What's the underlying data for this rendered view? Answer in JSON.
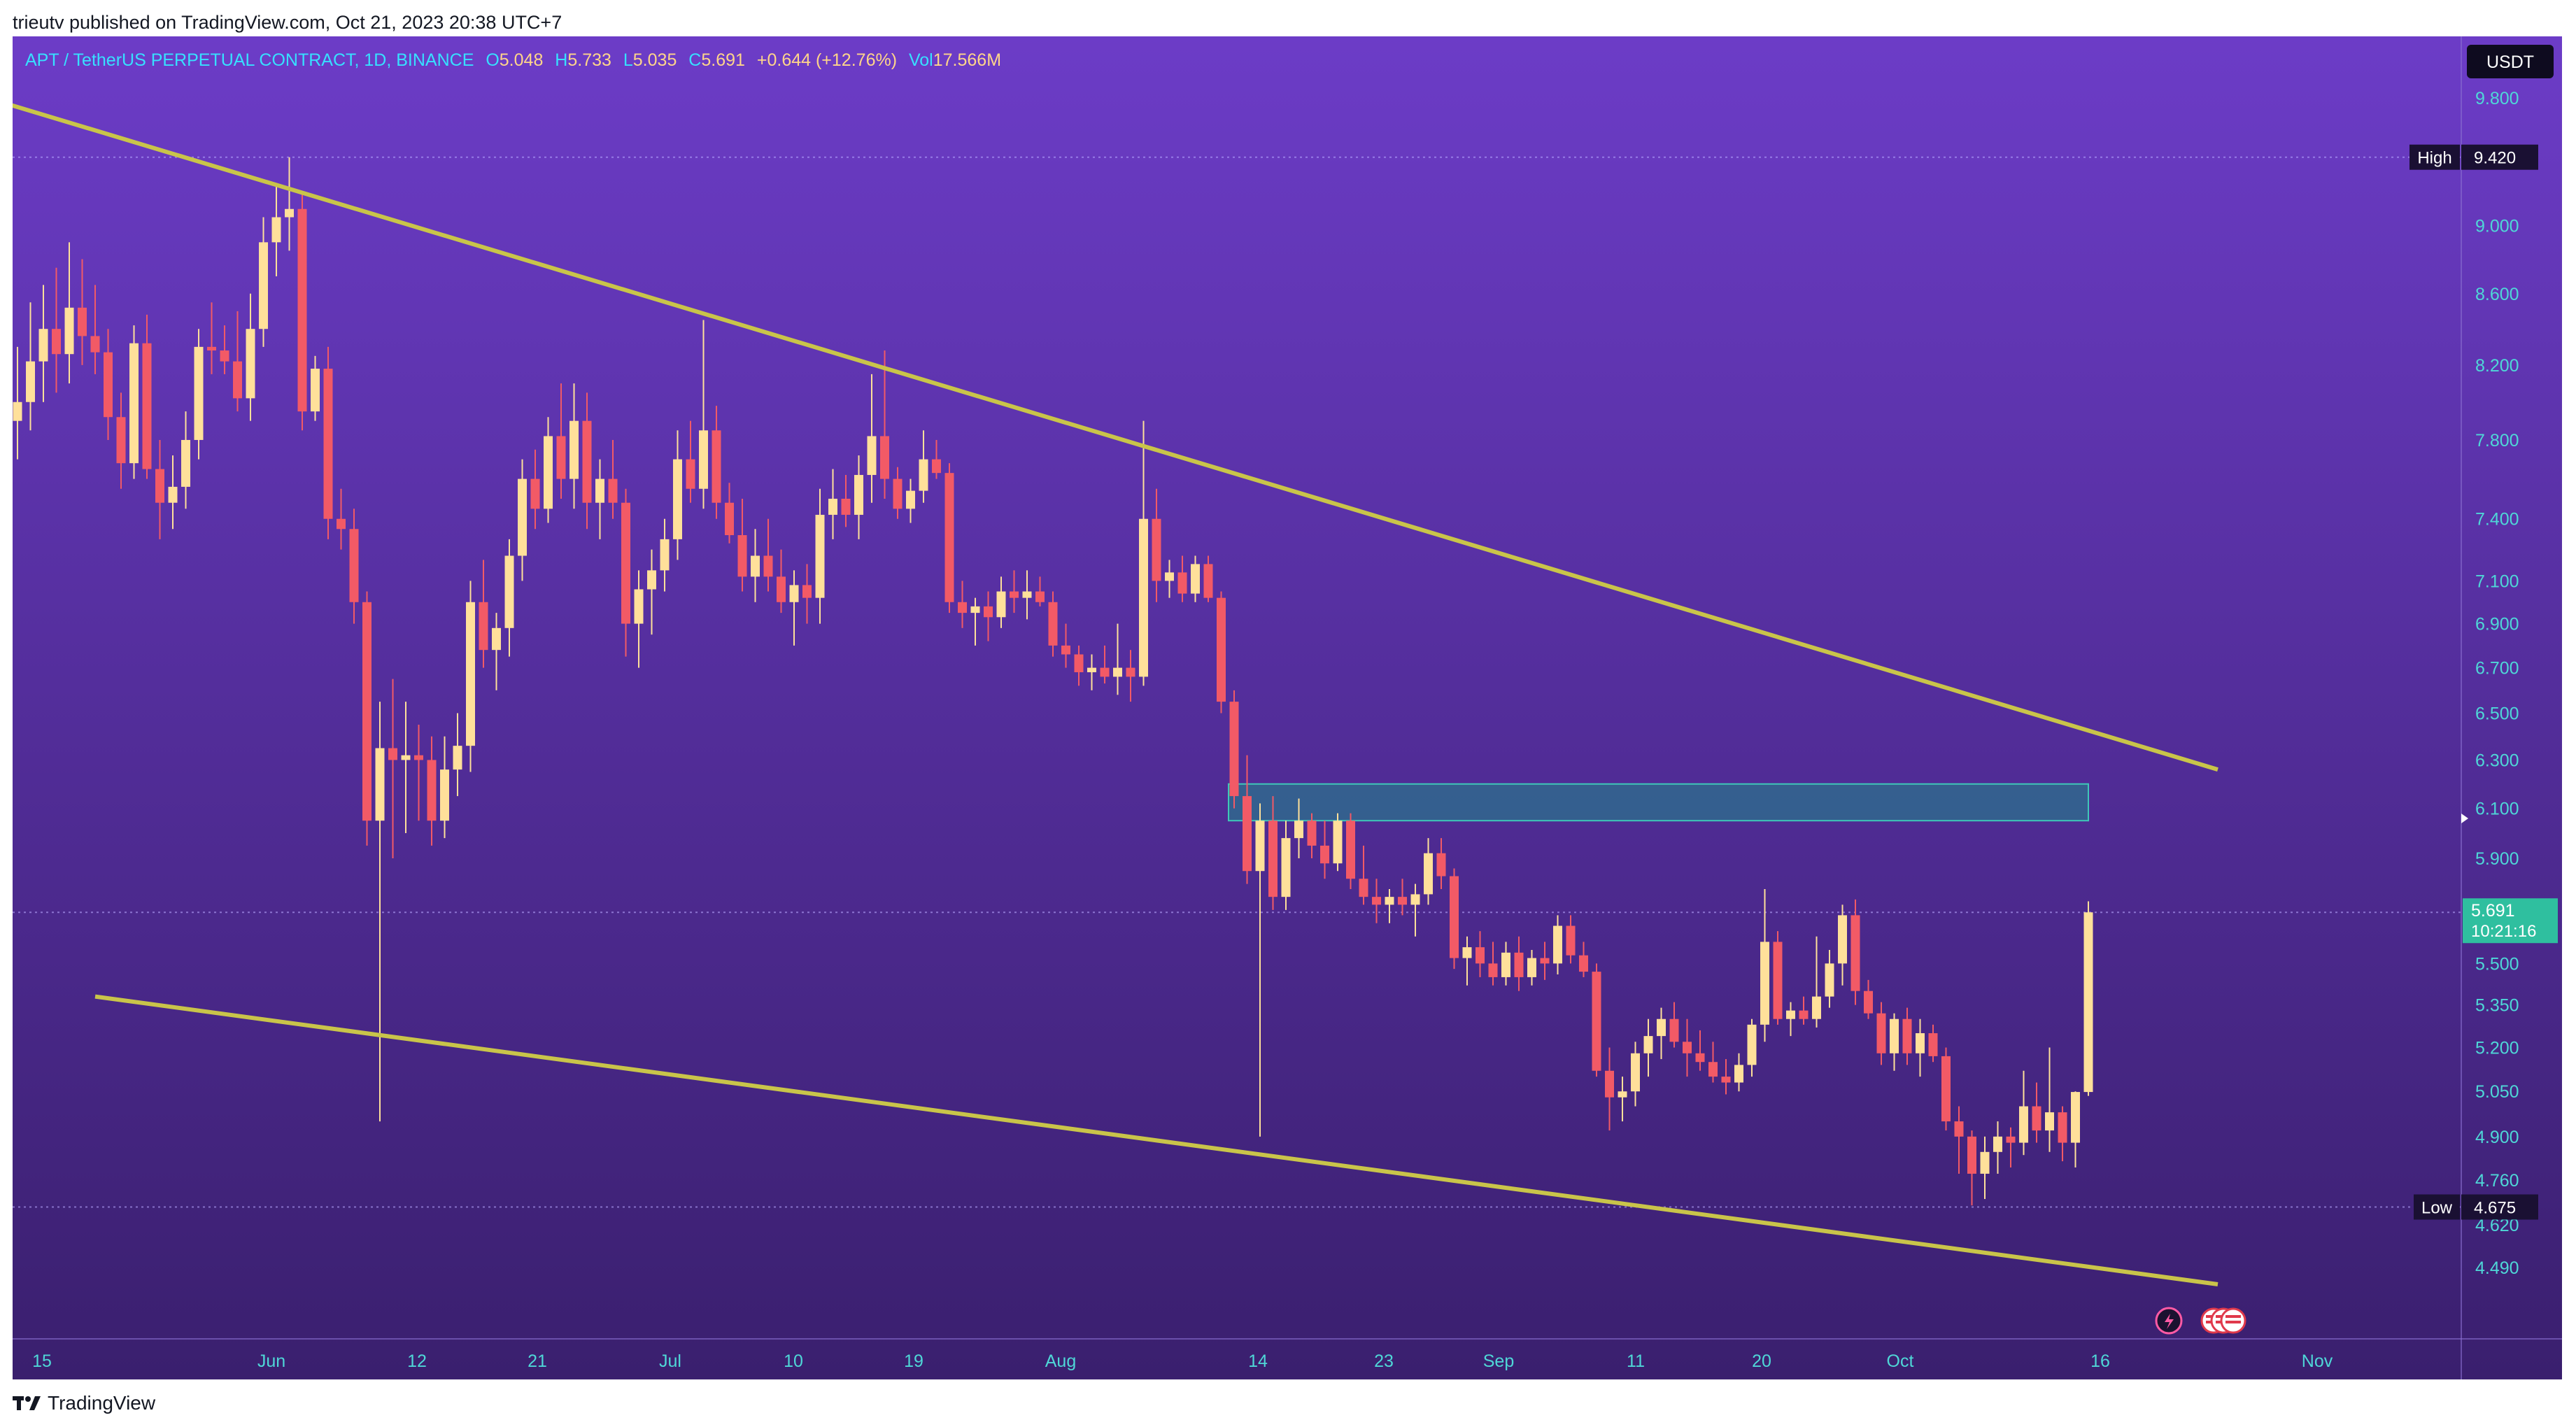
{
  "header": {
    "published_text": "trieutv published on TradingView.com, Oct 21, 2023 20:38 UTC+7"
  },
  "legend": {
    "symbol": "APT / TetherUS PERPETUAL CONTRACT, 1D, BINANCE",
    "open_label": "O",
    "open": "5.048",
    "high_label": "H",
    "high": "5.733",
    "low_label": "L",
    "low": "5.035",
    "close_label": "C",
    "close": "5.691",
    "change": "+0.644 (+12.76%)",
    "vol_label": "Vol",
    "volume": "17.566M"
  },
  "price_axis": {
    "currency": "USDT",
    "ticks": [
      "9.800",
      "9.000",
      "8.600",
      "8.200",
      "7.800",
      "7.400",
      "7.100",
      "6.900",
      "6.700",
      "6.500",
      "6.300",
      "6.100",
      "5.900",
      "5.500",
      "5.350",
      "5.200",
      "5.050",
      "4.900",
      "4.760",
      "4.620",
      "4.490"
    ],
    "high_label": "High",
    "high_value": "9.420",
    "low_label": "Low",
    "low_value": "4.675",
    "last_price": "5.691",
    "countdown": "10:21:16"
  },
  "time_axis": {
    "labels": [
      "15",
      "Jun",
      "12",
      "21",
      "Jul",
      "10",
      "19",
      "Aug",
      "14",
      "23",
      "Sep",
      "11",
      "20",
      "Oct",
      "16",
      "Nov"
    ]
  },
  "colors": {
    "bg_top": "#6c3cc7",
    "bg_bottom": "#3a1f6e",
    "up_candle": "#ffe09a",
    "down_candle": "#f25a66",
    "trendline": "#c9c44a",
    "zone_fill": "#1f8a8a",
    "last_price_badge": "#2fbf9f",
    "axis_text": "#4fd7d7"
  },
  "chart_data": {
    "type": "candlestick",
    "symbol": "APT/USDT",
    "timeframe": "1D",
    "x_range": [
      "2023-05-12",
      "2023-11-01"
    ],
    "ylim": [
      4.45,
      9.95
    ],
    "scale": "log",
    "candles": [
      {
        "o": 7.9,
        "h": 8.3,
        "l": 7.7,
        "c": 8.0
      },
      {
        "o": 8.0,
        "h": 8.55,
        "l": 7.85,
        "c": 8.22
      },
      {
        "o": 8.22,
        "h": 8.65,
        "l": 8.0,
        "c": 8.4
      },
      {
        "o": 8.4,
        "h": 8.75,
        "l": 8.05,
        "c": 8.26
      },
      {
        "o": 8.26,
        "h": 8.9,
        "l": 8.1,
        "c": 8.52
      },
      {
        "o": 8.52,
        "h": 8.8,
        "l": 8.2,
        "c": 8.36
      },
      {
        "o": 8.36,
        "h": 8.65,
        "l": 8.15,
        "c": 8.27
      },
      {
        "o": 8.27,
        "h": 8.4,
        "l": 7.8,
        "c": 7.92
      },
      {
        "o": 7.92,
        "h": 8.05,
        "l": 7.55,
        "c": 7.68
      },
      {
        "o": 7.68,
        "h": 8.42,
        "l": 7.6,
        "c": 8.32
      },
      {
        "o": 8.32,
        "h": 8.48,
        "l": 7.6,
        "c": 7.65
      },
      {
        "o": 7.65,
        "h": 7.8,
        "l": 7.3,
        "c": 7.48
      },
      {
        "o": 7.48,
        "h": 7.72,
        "l": 7.35,
        "c": 7.56
      },
      {
        "o": 7.56,
        "h": 7.95,
        "l": 7.45,
        "c": 7.8
      },
      {
        "o": 7.8,
        "h": 8.4,
        "l": 7.7,
        "c": 8.3
      },
      {
        "o": 8.3,
        "h": 8.55,
        "l": 8.15,
        "c": 8.28
      },
      {
        "o": 8.28,
        "h": 8.42,
        "l": 8.15,
        "c": 8.22
      },
      {
        "o": 8.22,
        "h": 8.5,
        "l": 7.95,
        "c": 8.02
      },
      {
        "o": 8.02,
        "h": 8.6,
        "l": 7.9,
        "c": 8.4
      },
      {
        "o": 8.4,
        "h": 9.05,
        "l": 8.3,
        "c": 8.9
      },
      {
        "o": 8.9,
        "h": 9.25,
        "l": 8.7,
        "c": 9.05
      },
      {
        "o": 9.05,
        "h": 9.42,
        "l": 8.85,
        "c": 9.1
      },
      {
        "o": 9.1,
        "h": 9.2,
        "l": 7.85,
        "c": 7.95
      },
      {
        "o": 7.95,
        "h": 8.25,
        "l": 7.9,
        "c": 8.18
      },
      {
        "o": 8.18,
        "h": 8.3,
        "l": 7.3,
        "c": 7.4
      },
      {
        "o": 7.4,
        "h": 7.55,
        "l": 7.25,
        "c": 7.35
      },
      {
        "o": 7.35,
        "h": 7.45,
        "l": 6.9,
        "c": 7.0
      },
      {
        "o": 7.0,
        "h": 7.05,
        "l": 5.95,
        "c": 6.05
      },
      {
        "o": 6.05,
        "h": 6.55,
        "l": 4.95,
        "c": 6.35
      },
      {
        "o": 6.35,
        "h": 6.65,
        "l": 5.9,
        "c": 6.3
      },
      {
        "o": 6.3,
        "h": 6.55,
        "l": 6.0,
        "c": 6.32
      },
      {
        "o": 6.32,
        "h": 6.45,
        "l": 6.05,
        "c": 6.3
      },
      {
        "o": 6.3,
        "h": 6.4,
        "l": 5.95,
        "c": 6.05
      },
      {
        "o": 6.05,
        "h": 6.4,
        "l": 5.98,
        "c": 6.26
      },
      {
        "o": 6.26,
        "h": 6.5,
        "l": 6.15,
        "c": 6.36
      },
      {
        "o": 6.36,
        "h": 7.1,
        "l": 6.25,
        "c": 7.0
      },
      {
        "o": 7.0,
        "h": 7.2,
        "l": 6.7,
        "c": 6.78
      },
      {
        "o": 6.78,
        "h": 6.95,
        "l": 6.6,
        "c": 6.88
      },
      {
        "o": 6.88,
        "h": 7.3,
        "l": 6.75,
        "c": 7.22
      },
      {
        "o": 7.22,
        "h": 7.7,
        "l": 7.1,
        "c": 7.6
      },
      {
        "o": 7.6,
        "h": 7.75,
        "l": 7.35,
        "c": 7.45
      },
      {
        "o": 7.45,
        "h": 7.92,
        "l": 7.38,
        "c": 7.82
      },
      {
        "o": 7.82,
        "h": 8.1,
        "l": 7.5,
        "c": 7.6
      },
      {
        "o": 7.6,
        "h": 8.1,
        "l": 7.45,
        "c": 7.9
      },
      {
        "o": 7.9,
        "h": 8.05,
        "l": 7.35,
        "c": 7.48
      },
      {
        "o": 7.48,
        "h": 7.7,
        "l": 7.3,
        "c": 7.6
      },
      {
        "o": 7.6,
        "h": 7.8,
        "l": 7.4,
        "c": 7.48
      },
      {
        "o": 7.48,
        "h": 7.55,
        "l": 6.75,
        "c": 6.9
      },
      {
        "o": 6.9,
        "h": 7.15,
        "l": 6.7,
        "c": 7.06
      },
      {
        "o": 7.06,
        "h": 7.25,
        "l": 6.85,
        "c": 7.15
      },
      {
        "o": 7.15,
        "h": 7.4,
        "l": 7.05,
        "c": 7.3
      },
      {
        "o": 7.3,
        "h": 7.85,
        "l": 7.2,
        "c": 7.7
      },
      {
        "o": 7.7,
        "h": 7.9,
        "l": 7.48,
        "c": 7.55
      },
      {
        "o": 7.55,
        "h": 8.45,
        "l": 7.45,
        "c": 7.85
      },
      {
        "o": 7.85,
        "h": 7.98,
        "l": 7.4,
        "c": 7.48
      },
      {
        "o": 7.48,
        "h": 7.58,
        "l": 7.28,
        "c": 7.32
      },
      {
        "o": 7.32,
        "h": 7.5,
        "l": 7.05,
        "c": 7.12
      },
      {
        "o": 7.12,
        "h": 7.35,
        "l": 7.0,
        "c": 7.22
      },
      {
        "o": 7.22,
        "h": 7.4,
        "l": 7.05,
        "c": 7.12
      },
      {
        "o": 7.12,
        "h": 7.25,
        "l": 6.95,
        "c": 7.0
      },
      {
        "o": 7.0,
        "h": 7.15,
        "l": 6.8,
        "c": 7.08
      },
      {
        "o": 7.08,
        "h": 7.18,
        "l": 6.9,
        "c": 7.02
      },
      {
        "o": 7.02,
        "h": 7.55,
        "l": 6.9,
        "c": 7.42
      },
      {
        "o": 7.42,
        "h": 7.65,
        "l": 7.3,
        "c": 7.5
      },
      {
        "o": 7.5,
        "h": 7.62,
        "l": 7.36,
        "c": 7.42
      },
      {
        "o": 7.42,
        "h": 7.72,
        "l": 7.3,
        "c": 7.62
      },
      {
        "o": 7.62,
        "h": 8.15,
        "l": 7.48,
        "c": 7.82
      },
      {
        "o": 7.82,
        "h": 8.28,
        "l": 7.5,
        "c": 7.6
      },
      {
        "o": 7.6,
        "h": 7.66,
        "l": 7.4,
        "c": 7.45
      },
      {
        "o": 7.45,
        "h": 7.6,
        "l": 7.38,
        "c": 7.54
      },
      {
        "o": 7.54,
        "h": 7.85,
        "l": 7.48,
        "c": 7.7
      },
      {
        "o": 7.7,
        "h": 7.8,
        "l": 7.6,
        "c": 7.63
      },
      {
        "o": 7.63,
        "h": 7.68,
        "l": 6.95,
        "c": 7.0
      },
      {
        "o": 7.0,
        "h": 7.1,
        "l": 6.88,
        "c": 6.95
      },
      {
        "o": 6.95,
        "h": 7.02,
        "l": 6.8,
        "c": 6.98
      },
      {
        "o": 6.98,
        "h": 7.05,
        "l": 6.82,
        "c": 6.93
      },
      {
        "o": 6.93,
        "h": 7.12,
        "l": 6.88,
        "c": 7.05
      },
      {
        "o": 7.05,
        "h": 7.15,
        "l": 6.95,
        "c": 7.02
      },
      {
        "o": 7.02,
        "h": 7.15,
        "l": 6.92,
        "c": 7.05
      },
      {
        "o": 7.05,
        "h": 7.12,
        "l": 6.98,
        "c": 7.0
      },
      {
        "o": 7.0,
        "h": 7.05,
        "l": 6.75,
        "c": 6.8
      },
      {
        "o": 6.8,
        "h": 6.9,
        "l": 6.7,
        "c": 6.76
      },
      {
        "o": 6.76,
        "h": 6.8,
        "l": 6.62,
        "c": 6.68
      },
      {
        "o": 6.68,
        "h": 6.76,
        "l": 6.6,
        "c": 6.7
      },
      {
        "o": 6.7,
        "h": 6.8,
        "l": 6.63,
        "c": 6.66
      },
      {
        "o": 6.66,
        "h": 6.9,
        "l": 6.58,
        "c": 6.7
      },
      {
        "o": 6.7,
        "h": 6.78,
        "l": 6.55,
        "c": 6.66
      },
      {
        "o": 6.66,
        "h": 7.9,
        "l": 6.62,
        "c": 7.4
      },
      {
        "o": 7.4,
        "h": 7.55,
        "l": 7.0,
        "c": 7.1
      },
      {
        "o": 7.1,
        "h": 7.2,
        "l": 7.02,
        "c": 7.14
      },
      {
        "o": 7.14,
        "h": 7.22,
        "l": 7.0,
        "c": 7.04
      },
      {
        "o": 7.04,
        "h": 7.22,
        "l": 7.0,
        "c": 7.18
      },
      {
        "o": 7.18,
        "h": 7.22,
        "l": 7.0,
        "c": 7.02
      },
      {
        "o": 7.02,
        "h": 7.05,
        "l": 6.5,
        "c": 6.55
      },
      {
        "o": 6.55,
        "h": 6.6,
        "l": 6.1,
        "c": 6.15
      },
      {
        "o": 6.15,
        "h": 6.32,
        "l": 5.8,
        "c": 5.85
      },
      {
        "o": 5.85,
        "h": 6.12,
        "l": 4.9,
        "c": 6.05
      },
      {
        "o": 6.05,
        "h": 6.15,
        "l": 5.7,
        "c": 5.75
      },
      {
        "o": 5.75,
        "h": 6.05,
        "l": 5.7,
        "c": 5.98
      },
      {
        "o": 5.98,
        "h": 6.14,
        "l": 5.9,
        "c": 6.05
      },
      {
        "o": 6.05,
        "h": 6.08,
        "l": 5.9,
        "c": 5.95
      },
      {
        "o": 5.95,
        "h": 6.05,
        "l": 5.82,
        "c": 5.88
      },
      {
        "o": 5.88,
        "h": 6.08,
        "l": 5.85,
        "c": 6.05
      },
      {
        "o": 6.05,
        "h": 6.08,
        "l": 5.78,
        "c": 5.82
      },
      {
        "o": 5.82,
        "h": 5.95,
        "l": 5.72,
        "c": 5.75
      },
      {
        "o": 5.75,
        "h": 5.82,
        "l": 5.65,
        "c": 5.72
      },
      {
        "o": 5.72,
        "h": 5.78,
        "l": 5.65,
        "c": 5.75
      },
      {
        "o": 5.75,
        "h": 5.82,
        "l": 5.68,
        "c": 5.72
      },
      {
        "o": 5.72,
        "h": 5.8,
        "l": 5.6,
        "c": 5.76
      },
      {
        "o": 5.76,
        "h": 5.98,
        "l": 5.72,
        "c": 5.92
      },
      {
        "o": 5.92,
        "h": 5.98,
        "l": 5.78,
        "c": 5.83
      },
      {
        "o": 5.83,
        "h": 5.86,
        "l": 5.48,
        "c": 5.52
      },
      {
        "o": 5.52,
        "h": 5.6,
        "l": 5.42,
        "c": 5.56
      },
      {
        "o": 5.56,
        "h": 5.62,
        "l": 5.45,
        "c": 5.5
      },
      {
        "o": 5.5,
        "h": 5.58,
        "l": 5.42,
        "c": 5.45
      },
      {
        "o": 5.45,
        "h": 5.58,
        "l": 5.42,
        "c": 5.54
      },
      {
        "o": 5.54,
        "h": 5.6,
        "l": 5.4,
        "c": 5.45
      },
      {
        "o": 5.45,
        "h": 5.55,
        "l": 5.42,
        "c": 5.52
      },
      {
        "o": 5.52,
        "h": 5.58,
        "l": 5.44,
        "c": 5.5
      },
      {
        "o": 5.5,
        "h": 5.68,
        "l": 5.46,
        "c": 5.64
      },
      {
        "o": 5.64,
        "h": 5.68,
        "l": 5.5,
        "c": 5.53
      },
      {
        "o": 5.53,
        "h": 5.58,
        "l": 5.45,
        "c": 5.47
      },
      {
        "o": 5.47,
        "h": 5.5,
        "l": 5.1,
        "c": 5.12
      },
      {
        "o": 5.12,
        "h": 5.2,
        "l": 4.92,
        "c": 5.03
      },
      {
        "o": 5.03,
        "h": 5.1,
        "l": 4.95,
        "c": 5.05
      },
      {
        "o": 5.05,
        "h": 5.22,
        "l": 5.0,
        "c": 5.18
      },
      {
        "o": 5.18,
        "h": 5.3,
        "l": 5.1,
        "c": 5.24
      },
      {
        "o": 5.24,
        "h": 5.34,
        "l": 5.16,
        "c": 5.3
      },
      {
        "o": 5.3,
        "h": 5.36,
        "l": 5.2,
        "c": 5.22
      },
      {
        "o": 5.22,
        "h": 5.3,
        "l": 5.1,
        "c": 5.18
      },
      {
        "o": 5.18,
        "h": 5.26,
        "l": 5.12,
        "c": 5.15
      },
      {
        "o": 5.15,
        "h": 5.22,
        "l": 5.08,
        "c": 5.1
      },
      {
        "o": 5.1,
        "h": 5.16,
        "l": 5.04,
        "c": 5.08
      },
      {
        "o": 5.08,
        "h": 5.18,
        "l": 5.05,
        "c": 5.14
      },
      {
        "o": 5.14,
        "h": 5.3,
        "l": 5.1,
        "c": 5.28
      },
      {
        "o": 5.28,
        "h": 5.78,
        "l": 5.22,
        "c": 5.58
      },
      {
        "o": 5.58,
        "h": 5.62,
        "l": 5.28,
        "c": 5.3
      },
      {
        "o": 5.3,
        "h": 5.36,
        "l": 5.24,
        "c": 5.33
      },
      {
        "o": 5.33,
        "h": 5.38,
        "l": 5.28,
        "c": 5.3
      },
      {
        "o": 5.3,
        "h": 5.6,
        "l": 5.27,
        "c": 5.38
      },
      {
        "o": 5.38,
        "h": 5.55,
        "l": 5.34,
        "c": 5.5
      },
      {
        "o": 5.5,
        "h": 5.72,
        "l": 5.42,
        "c": 5.68
      },
      {
        "o": 5.68,
        "h": 5.74,
        "l": 5.35,
        "c": 5.4
      },
      {
        "o": 5.4,
        "h": 5.44,
        "l": 5.3,
        "c": 5.32
      },
      {
        "o": 5.32,
        "h": 5.36,
        "l": 5.14,
        "c": 5.18
      },
      {
        "o": 5.18,
        "h": 5.32,
        "l": 5.12,
        "c": 5.3
      },
      {
        "o": 5.3,
        "h": 5.34,
        "l": 5.14,
        "c": 5.18
      },
      {
        "o": 5.18,
        "h": 5.3,
        "l": 5.1,
        "c": 5.25
      },
      {
        "o": 5.25,
        "h": 5.28,
        "l": 5.15,
        "c": 5.17
      },
      {
        "o": 5.17,
        "h": 5.2,
        "l": 4.92,
        "c": 4.95
      },
      {
        "o": 4.95,
        "h": 5.0,
        "l": 4.78,
        "c": 4.9
      },
      {
        "o": 4.9,
        "h": 4.92,
        "l": 4.68,
        "c": 4.78
      },
      {
        "o": 4.78,
        "h": 4.9,
        "l": 4.7,
        "c": 4.85
      },
      {
        "o": 4.85,
        "h": 4.95,
        "l": 4.78,
        "c": 4.9
      },
      {
        "o": 4.9,
        "h": 4.93,
        "l": 4.8,
        "c": 4.88
      },
      {
        "o": 4.88,
        "h": 5.12,
        "l": 4.84,
        "c": 5.0
      },
      {
        "o": 5.0,
        "h": 5.08,
        "l": 4.88,
        "c": 4.92
      },
      {
        "o": 4.92,
        "h": 5.2,
        "l": 4.85,
        "c": 4.98
      },
      {
        "o": 4.98,
        "h": 5.0,
        "l": 4.82,
        "c": 4.88
      },
      {
        "o": 4.88,
        "h": 5.05,
        "l": 4.8,
        "c": 5.048
      },
      {
        "o": 5.048,
        "h": 5.733,
        "l": 5.035,
        "c": 5.691
      }
    ],
    "upper_trendline": [
      [
        -3.5,
        9.83
      ],
      [
        170,
        6.26
      ]
    ],
    "lower_trendline": [
      [
        6,
        5.38
      ],
      [
        170,
        4.44
      ]
    ],
    "resistance_zone": {
      "start_index": 94,
      "end_index": 160,
      "top": 6.2,
      "bottom": 6.05
    }
  }
}
